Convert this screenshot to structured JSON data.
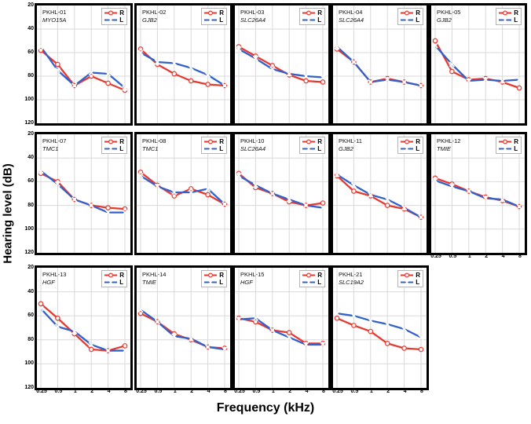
{
  "figure": {
    "y_axis_title": "Hearing level (dB)",
    "x_axis_title": "Frequency (kHz)",
    "y_ticks": [
      "20",
      "40",
      "60",
      "80",
      "100",
      "120"
    ],
    "x_ticks": [
      "0.25",
      "0.5",
      "1",
      "2",
      "4",
      "8"
    ],
    "legend": {
      "right_label": "R",
      "left_label": "L"
    },
    "colors": {
      "right_ear": "#e53a31",
      "left_ear": "#3361cc",
      "grid": "#d9d9d9",
      "panel_border": "#000000",
      "legend_border": "#b5b5b5"
    }
  },
  "chart_data": [
    {
      "type": "line",
      "patient": "PKHL-01",
      "gene": "MYO15A",
      "x": [
        0.25,
        0.5,
        1,
        2,
        4,
        8
      ],
      "ylim": [
        20,
        120
      ],
      "y_inverted": true,
      "grid": true,
      "legend_position": "top-right",
      "show_y_labels": true,
      "show_x_labels": false,
      "series": [
        {
          "name": "R",
          "values": [
            58,
            70,
            88,
            80,
            86,
            92
          ]
        },
        {
          "name": "L",
          "values": [
            55,
            75,
            88,
            77,
            78,
            90
          ]
        }
      ]
    },
    {
      "type": "line",
      "patient": "PKHL-02",
      "gene": "GJB2",
      "x": [
        0.25,
        0.5,
        1,
        2,
        4,
        8
      ],
      "ylim": [
        20,
        120
      ],
      "y_inverted": true,
      "grid": true,
      "legend_position": "top-right",
      "show_y_labels": false,
      "show_x_labels": false,
      "series": [
        {
          "name": "R",
          "values": [
            57,
            70,
            78,
            84,
            87,
            88
          ]
        },
        {
          "name": "L",
          "values": [
            60,
            68,
            69,
            73,
            79,
            88
          ]
        }
      ]
    },
    {
      "type": "line",
      "patient": "PKHL-03",
      "gene": "SLC26A4",
      "x": [
        0.25,
        0.5,
        1,
        2,
        4,
        8
      ],
      "ylim": [
        20,
        120
      ],
      "y_inverted": true,
      "grid": true,
      "legend_position": "top-right",
      "show_y_labels": false,
      "show_x_labels": false,
      "series": [
        {
          "name": "R",
          "values": [
            55,
            63,
            71,
            79,
            84,
            85
          ]
        },
        {
          "name": "L",
          "values": [
            57,
            65,
            74,
            78,
            80,
            81
          ]
        }
      ]
    },
    {
      "type": "line",
      "patient": "PKHL-04",
      "gene": "SLC26A4",
      "x": [
        0.25,
        0.5,
        1,
        2,
        4,
        8
      ],
      "ylim": [
        20,
        120
      ],
      "y_inverted": true,
      "grid": true,
      "legend_position": "top-right",
      "show_y_labels": false,
      "show_x_labels": false,
      "series": [
        {
          "name": "R",
          "values": [
            57,
            68,
            85,
            82,
            85,
            88
          ]
        },
        {
          "name": "L",
          "values": [
            55,
            68,
            85,
            83,
            85,
            88
          ]
        }
      ]
    },
    {
      "type": "line",
      "patient": "PKHL-05",
      "gene": "GJB2",
      "x": [
        0.25,
        0.5,
        1,
        2,
        4,
        8
      ],
      "ylim": [
        20,
        120
      ],
      "y_inverted": true,
      "grid": true,
      "legend_position": "top-right",
      "show_y_labels": false,
      "show_x_labels": false,
      "series": [
        {
          "name": "R",
          "values": [
            50,
            76,
            83,
            82,
            85,
            90
          ]
        },
        {
          "name": "L",
          "values": [
            54,
            70,
            84,
            83,
            84,
            83
          ]
        }
      ]
    },
    {
      "type": "line",
      "patient": "PKHL-07",
      "gene": "TMC1",
      "x": [
        0.25,
        0.5,
        1,
        2,
        4,
        8
      ],
      "ylim": [
        20,
        120
      ],
      "y_inverted": true,
      "grid": true,
      "legend_position": "top-right",
      "show_y_labels": true,
      "show_x_labels": false,
      "series": [
        {
          "name": "R",
          "values": [
            53,
            60,
            75,
            80,
            82,
            83
          ]
        },
        {
          "name": "L",
          "values": [
            51,
            62,
            75,
            80,
            86,
            86
          ]
        }
      ]
    },
    {
      "type": "line",
      "patient": "PKHL-08",
      "gene": "TMC1",
      "x": [
        0.25,
        0.5,
        1,
        2,
        4,
        8
      ],
      "ylim": [
        20,
        120
      ],
      "y_inverted": true,
      "grid": true,
      "legend_position": "top-right",
      "show_y_labels": false,
      "show_x_labels": false,
      "series": [
        {
          "name": "R",
          "values": [
            52,
            63,
            72,
            66,
            71,
            79
          ]
        },
        {
          "name": "L",
          "values": [
            55,
            64,
            69,
            69,
            66,
            79
          ]
        }
      ]
    },
    {
      "type": "line",
      "patient": "PKHL-10",
      "gene": "SLC26A4",
      "x": [
        0.25,
        0.5,
        1,
        2,
        4,
        8
      ],
      "ylim": [
        20,
        120
      ],
      "y_inverted": true,
      "grid": true,
      "legend_position": "top-right",
      "show_y_labels": false,
      "show_x_labels": false,
      "series": [
        {
          "name": "R",
          "values": [
            53,
            65,
            70,
            77,
            80,
            78
          ]
        },
        {
          "name": "L",
          "values": [
            55,
            63,
            70,
            75,
            80,
            82
          ]
        }
      ]
    },
    {
      "type": "line",
      "patient": "PKHL-11",
      "gene": "GJB2",
      "x": [
        0.25,
        0.5,
        1,
        2,
        4,
        8
      ],
      "ylim": [
        20,
        120
      ],
      "y_inverted": true,
      "grid": true,
      "legend_position": "top-right",
      "show_y_labels": false,
      "show_x_labels": false,
      "series": [
        {
          "name": "R",
          "values": [
            55,
            68,
            72,
            80,
            83,
            90
          ]
        },
        {
          "name": "L",
          "values": [
            54,
            63,
            71,
            75,
            82,
            90
          ]
        }
      ]
    },
    {
      "type": "line",
      "patient": "PKHL-12",
      "gene": "TMIE",
      "x": [
        0.25,
        0.5,
        1,
        2,
        4,
        8
      ],
      "ylim": [
        20,
        120
      ],
      "y_inverted": true,
      "grid": true,
      "legend_position": "top-right",
      "show_y_labels": false,
      "show_x_labels": true,
      "series": [
        {
          "name": "R",
          "values": [
            57,
            62,
            68,
            73,
            76,
            81
          ]
        },
        {
          "name": "L",
          "values": [
            59,
            64,
            68,
            74,
            75,
            81
          ]
        }
      ]
    },
    {
      "type": "line",
      "patient": "PKHL-13",
      "gene": "HGF",
      "x": [
        0.25,
        0.5,
        1,
        2,
        4,
        8
      ],
      "ylim": [
        20,
        120
      ],
      "y_inverted": true,
      "grid": true,
      "legend_position": "top-right",
      "show_y_labels": true,
      "show_x_labels": true,
      "series": [
        {
          "name": "R",
          "values": [
            50,
            62,
            75,
            88,
            89,
            85
          ]
        },
        {
          "name": "L",
          "values": [
            54,
            69,
            73,
            84,
            89,
            89
          ]
        }
      ]
    },
    {
      "type": "line",
      "patient": "PKHL-14",
      "gene": "TMIE",
      "x": [
        0.25,
        0.5,
        1,
        2,
        4,
        8
      ],
      "ylim": [
        20,
        120
      ],
      "y_inverted": true,
      "grid": true,
      "legend_position": "top-right",
      "show_y_labels": false,
      "show_x_labels": true,
      "series": [
        {
          "name": "R",
          "values": [
            58,
            65,
            75,
            80,
            86,
            87
          ]
        },
        {
          "name": "L",
          "values": [
            55,
            65,
            77,
            79,
            86,
            88
          ]
        }
      ]
    },
    {
      "type": "line",
      "patient": "PKHL-15",
      "gene": "HGF",
      "x": [
        0.25,
        0.5,
        1,
        2,
        4,
        8
      ],
      "ylim": [
        20,
        120
      ],
      "y_inverted": true,
      "grid": true,
      "legend_position": "top-right",
      "show_y_labels": false,
      "show_x_labels": true,
      "series": [
        {
          "name": "R",
          "values": [
            62,
            65,
            72,
            74,
            83,
            83
          ]
        },
        {
          "name": "L",
          "values": [
            63,
            62,
            72,
            78,
            84,
            84
          ]
        }
      ]
    },
    {
      "type": "line",
      "patient": "PKHL-21",
      "gene": "SLC19A2",
      "x": [
        0.25,
        0.5,
        1,
        2,
        4,
        8
      ],
      "ylim": [
        20,
        120
      ],
      "y_inverted": true,
      "grid": true,
      "legend_position": "top-right",
      "show_y_labels": false,
      "show_x_labels": true,
      "series": [
        {
          "name": "R",
          "values": [
            62,
            68,
            73,
            83,
            87,
            88
          ]
        },
        {
          "name": "L",
          "values": [
            58,
            60,
            64,
            67,
            71,
            78
          ]
        }
      ]
    }
  ]
}
